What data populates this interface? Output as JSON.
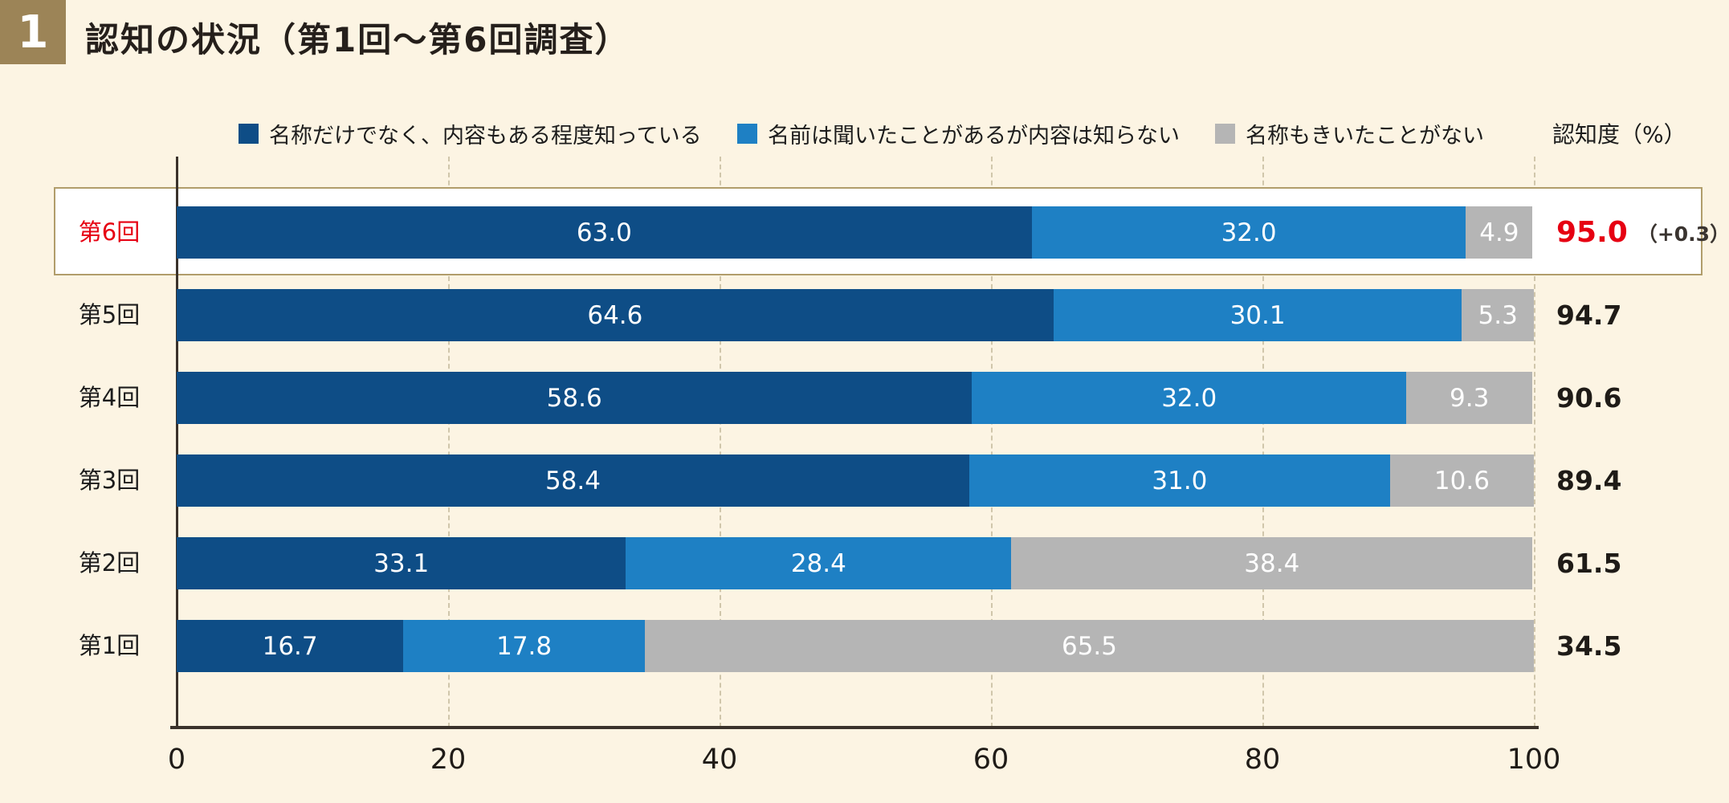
{
  "header": {
    "number": "1",
    "title": "認知の状況（第1回～第6回調査）"
  },
  "legend": {
    "items": [
      {
        "label": "名称だけでなく、内容もある程度知っている",
        "color": "#0e4d86"
      },
      {
        "label": "名前は聞いたことがあるが内容は知らない",
        "color": "#1e80c4"
      },
      {
        "label": "名称もきいたことがない",
        "color": "#b5b5b5"
      }
    ],
    "axis_note": "認知度（%）"
  },
  "chart_data": {
    "type": "bar",
    "orientation": "horizontal",
    "stacked": true,
    "categories": [
      "第6回",
      "第5回",
      "第4回",
      "第3回",
      "第2回",
      "第1回"
    ],
    "series": [
      {
        "name": "名称だけでなく、内容もある程度知っている",
        "color": "#0e4d86",
        "values": [
          63.0,
          64.6,
          58.6,
          58.4,
          33.1,
          16.7
        ]
      },
      {
        "name": "名前は聞いたことがあるが内容は知らない",
        "color": "#1e80c4",
        "values": [
          32.0,
          30.1,
          32.0,
          31.0,
          28.4,
          17.8
        ]
      },
      {
        "name": "名称もきいたことがない",
        "color": "#b5b5b5",
        "values": [
          4.9,
          5.3,
          9.3,
          10.6,
          38.4,
          65.5
        ]
      }
    ],
    "totals": {
      "label": "認知度（%）",
      "values": [
        95.0,
        94.7,
        90.6,
        89.4,
        61.5,
        34.5
      ],
      "notes": [
        "（+0.3）",
        "",
        "",
        "",
        "",
        ""
      ]
    },
    "highlight_index": 0,
    "highlight_color": "#e60012",
    "xticks": [
      0,
      20,
      40,
      60,
      80,
      100
    ],
    "xlim": [
      0,
      100
    ],
    "grid": "dashed-vertical",
    "legend_position": "top"
  }
}
